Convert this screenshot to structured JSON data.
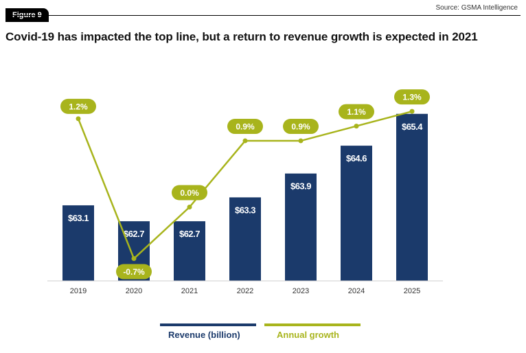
{
  "header": {
    "figure_badge": "Figure 9",
    "source": "Source: GSMA Intelligence",
    "title": "Covid-19 has impacted the top line, but a return to revenue growth is expected in 2021"
  },
  "colors": {
    "bar": "#1b3a6b",
    "growth": "#a8b41c"
  },
  "chart_data": {
    "type": "bar",
    "categories": [
      "2019",
      "2020",
      "2021",
      "2022",
      "2023",
      "2024",
      "2025"
    ],
    "series": [
      {
        "name": "Revenue (billion)",
        "type": "bar",
        "values": [
          63.1,
          62.7,
          62.7,
          63.3,
          63.9,
          64.6,
          65.4
        ],
        "labels": [
          "$63.1",
          "$62.7",
          "$62.7",
          "$63.3",
          "$63.9",
          "$64.6",
          "$65.4"
        ]
      },
      {
        "name": "Annual growth",
        "type": "line",
        "values": [
          1.2,
          -0.7,
          0.0,
          0.9,
          0.9,
          1.1,
          1.3
        ],
        "labels": [
          "1.2%",
          "-0.7%",
          "0.0%",
          "0.9%",
          "0.9%",
          "1.1%",
          "1.3%"
        ]
      }
    ],
    "bar_axis_range": [
      61.2,
      65.5
    ],
    "line_axis_range": [
      -0.9,
      1.6
    ],
    "title": "Covid-19 has impacted the top line, but a return to revenue growth is expected in 2021",
    "xlabel": "",
    "ylabel": "",
    "grid": false,
    "legend_position": "bottom"
  },
  "legend": {
    "revenue_label": "Revenue (billion)",
    "growth_label": "Annual growth"
  }
}
